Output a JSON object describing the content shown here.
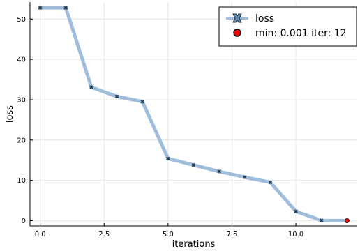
{
  "chart_data": {
    "type": "line",
    "xlabel": "iterations",
    "ylabel": "loss",
    "xlim": [
      -0.4,
      12.4
    ],
    "ylim": [
      -1.3,
      54.2
    ],
    "x_ticks": [
      0.0,
      2.5,
      5.0,
      7.5,
      10.0
    ],
    "x_tick_labels": [
      "0.0",
      "2.5",
      "5.0",
      "7.5",
      "10.0"
    ],
    "y_ticks": [
      0,
      10,
      20,
      30,
      40,
      50
    ],
    "y_tick_labels": [
      "0",
      "10",
      "20",
      "30",
      "40",
      "50"
    ],
    "grid": true,
    "legend_position": "top-right",
    "series": [
      {
        "name": "loss",
        "marker": "x",
        "color": "#a0bedc",
        "marker_color": "#4a6a86",
        "x": [
          0,
          1,
          2,
          3,
          4,
          5,
          6,
          7,
          8,
          9,
          10,
          11,
          12
        ],
        "y": [
          52.8,
          52.8,
          33.1,
          30.8,
          29.5,
          15.4,
          13.8,
          12.2,
          10.8,
          9.5,
          2.3,
          0.05,
          0.001
        ]
      },
      {
        "name": "min: 0.001 iter: 12",
        "type": "scatter",
        "marker": "circle",
        "color": "#ff0000",
        "x": [
          12
        ],
        "y": [
          0.001
        ]
      }
    ]
  }
}
